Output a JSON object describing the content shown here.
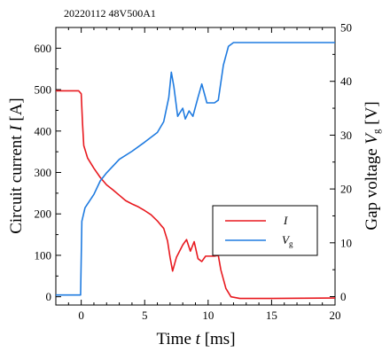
{
  "chart_data": {
    "type": "line",
    "title": "20220112 48V500A1",
    "xlabel": "Time t [ms]",
    "ylabel_left": "Circuit current I [A]",
    "ylabel_right": "Gap voltage Vg [V]",
    "xlim": [
      -2,
      20
    ],
    "ylim_left": [
      -20,
      650
    ],
    "ylim_right": [
      -1.56,
      50
    ],
    "x_ticks": [
      0,
      5,
      10,
      15,
      20
    ],
    "y_left_ticks": [
      0,
      100,
      200,
      300,
      400,
      500,
      600
    ],
    "y_right_ticks": [
      0,
      10,
      20,
      30,
      40,
      50
    ],
    "grid": false,
    "legend_placement": "center-right",
    "series": [
      {
        "name": "I",
        "axis": "left",
        "color": "#e8191f",
        "points": [
          [
            -2,
            497
          ],
          [
            -0.2,
            497
          ],
          [
            0,
            490
          ],
          [
            0.1,
            420
          ],
          [
            0.2,
            365
          ],
          [
            0.5,
            335
          ],
          [
            1,
            310
          ],
          [
            1.5,
            288
          ],
          [
            2,
            270
          ],
          [
            2.5,
            258
          ],
          [
            3,
            245
          ],
          [
            3.5,
            232
          ],
          [
            4,
            224
          ],
          [
            4.5,
            217
          ],
          [
            5,
            208
          ],
          [
            5.5,
            198
          ],
          [
            6,
            183
          ],
          [
            6.3,
            172
          ],
          [
            6.5,
            165
          ],
          [
            6.8,
            135
          ],
          [
            7,
            95
          ],
          [
            7.2,
            62
          ],
          [
            7.5,
            95
          ],
          [
            8,
            125
          ],
          [
            8.3,
            138
          ],
          [
            8.6,
            110
          ],
          [
            8.9,
            133
          ],
          [
            9.2,
            92
          ],
          [
            9.5,
            85
          ],
          [
            9.8,
            98
          ],
          [
            10.5,
            98
          ],
          [
            10.8,
            100
          ],
          [
            11,
            65
          ],
          [
            11.4,
            20
          ],
          [
            11.8,
            0
          ],
          [
            12.5,
            -4
          ],
          [
            15,
            -4
          ],
          [
            20,
            -3
          ]
        ]
      },
      {
        "name": "V",
        "subscript": "g",
        "axis": "right",
        "color": "#1f7be0",
        "points": [
          [
            -2,
            0.3
          ],
          [
            -0.05,
            0.3
          ],
          [
            0.05,
            14
          ],
          [
            0.3,
            16.5
          ],
          [
            1,
            19
          ],
          [
            1.5,
            21.5
          ],
          [
            2,
            23
          ],
          [
            3,
            25.5
          ],
          [
            4,
            27
          ],
          [
            5,
            28.7
          ],
          [
            6,
            30.5
          ],
          [
            6.5,
            32.5
          ],
          [
            6.9,
            37
          ],
          [
            7.1,
            41.7
          ],
          [
            7.3,
            39
          ],
          [
            7.6,
            33.5
          ],
          [
            8,
            35
          ],
          [
            8.2,
            33
          ],
          [
            8.5,
            34.5
          ],
          [
            8.8,
            33.5
          ],
          [
            9.2,
            37
          ],
          [
            9.5,
            39.5
          ],
          [
            9.9,
            36
          ],
          [
            10.5,
            36
          ],
          [
            10.8,
            36.5
          ],
          [
            11.2,
            43
          ],
          [
            11.6,
            46.5
          ],
          [
            12,
            47.2
          ],
          [
            15,
            47.2
          ],
          [
            20,
            47.2
          ]
        ]
      }
    ]
  }
}
